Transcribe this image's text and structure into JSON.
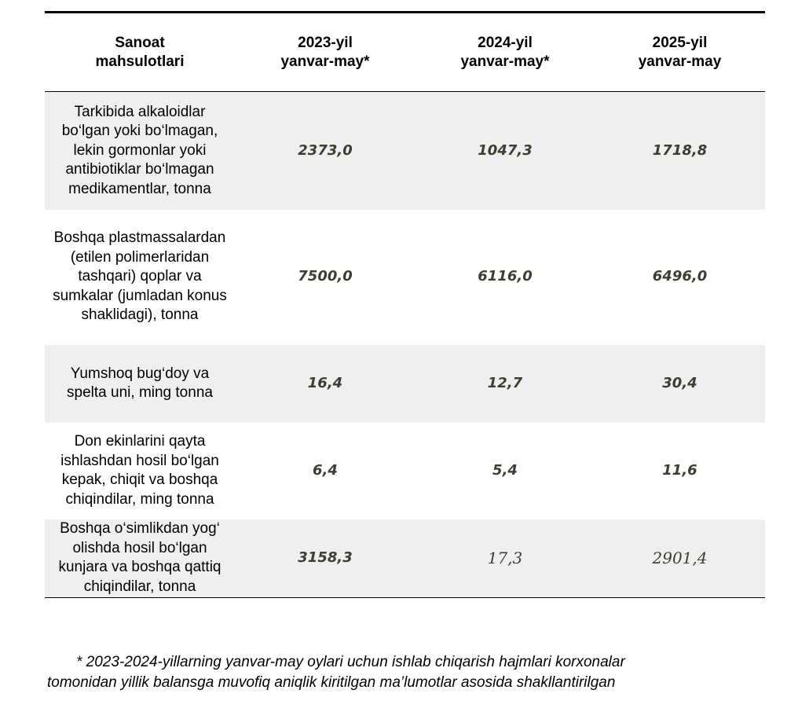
{
  "table": {
    "headers": [
      "Sanoat mahsulotlari",
      "2023-yil yanvar-may*",
      "2024-yil yanvar-may*",
      "2025-yil yanvar-may"
    ],
    "rows": [
      {
        "product": "Tarkibida alkaloidlar bo‘lgan yoki bo‘lmagan, lekin gormonlar yoki antibiotiklar bo‘lmagan medikamentlar, tonna",
        "y2023": "2373,0",
        "y2024": "1047,3",
        "y2025": "1718,8"
      },
      {
        "product": "Boshqa plastmassalardan (etilen polimerlaridan tashqari) qoplar va sumkalar (jumladan konus shaklidagi), tonna",
        "y2023": "7500,0",
        "y2024": "6116,0",
        "y2025": "6496,0"
      },
      {
        "product": "Yumshoq bug‘doy va spelta uni, ming tonna",
        "y2023": "16,4",
        "y2024": "12,7",
        "y2025": "30,4"
      },
      {
        "product": "Don ekinlarini qayta ishlashdan hosil bo‘lgan kepak, chiqit va boshqa chiqindilar, ming tonna",
        "y2023": "6,4",
        "y2024": "5,4",
        "y2025": "11,6"
      },
      {
        "product": "Boshqa o‘simlikdan yog‘ olishda hosil bo‘lgan kunjara va boshqa qattiq chiqindilar, tonna",
        "y2023": "3158,3",
        "y2024": "17,3",
        "y2025": "2901,4"
      }
    ]
  },
  "footnote": {
    "line1": "* 2023-2024-yillarning yanvar-may oylari uchun ishlab chiqarish hajmlari korxonalar",
    "line2": "tomonidan yillik balansga muvofiq aniqlik kiritilgan ma’lumotlar asosida shakllantirilgan"
  },
  "colors": {
    "row_shade": "#efefef",
    "value_text": "#3b3f33"
  }
}
